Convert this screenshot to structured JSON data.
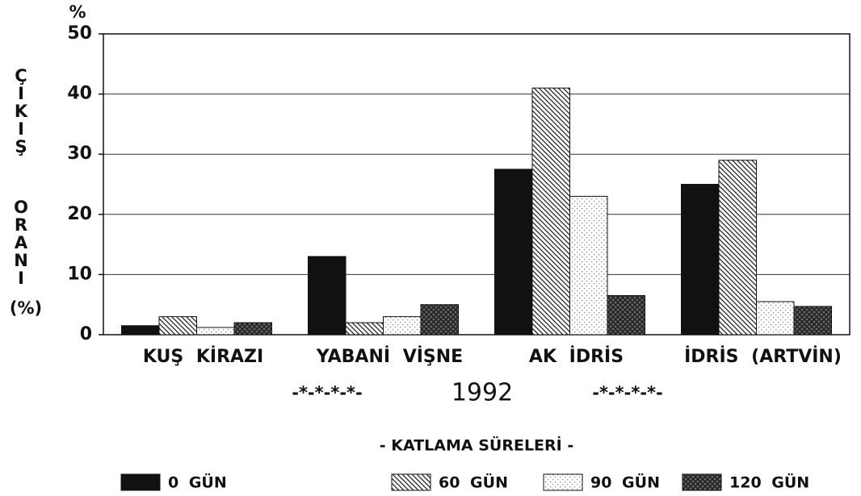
{
  "chart_data": {
    "type": "bar",
    "unit_label": "%",
    "ylabel": [
      "ÇIKIŞ",
      "ORANI",
      "(%)"
    ],
    "categories": [
      "KUŞ KİRAZI",
      "YABANİ VİŞNE",
      "AK İDRİS",
      "İDRİS (ARTVİN)"
    ],
    "subtitle": "1992",
    "decoration_left": "-*-*-*-*-",
    "decoration_right": "-*-*-*-*-",
    "legend_title": "- KATLAMA SÜRELERİ -",
    "series": [
      {
        "name": "0 GÜN",
        "color": "#111111",
        "pattern": "solid",
        "values": [
          1.5,
          13,
          27.5,
          25
        ]
      },
      {
        "name": "60 GÜN",
        "color": "#222222",
        "pattern": "diagonal",
        "values": [
          3,
          2,
          41,
          29
        ]
      },
      {
        "name": "90 GÜN",
        "color": "#888888",
        "pattern": "dots",
        "values": [
          1.2,
          3,
          23,
          5.5
        ]
      },
      {
        "name": "120 GÜN",
        "color": "#222222",
        "pattern": "crosshatch",
        "values": [
          2,
          5,
          6.5,
          4.7
        ]
      }
    ],
    "ylim": [
      0,
      50
    ],
    "yticks": [
      0,
      10,
      20,
      30,
      40,
      50
    ],
    "grid": true
  }
}
